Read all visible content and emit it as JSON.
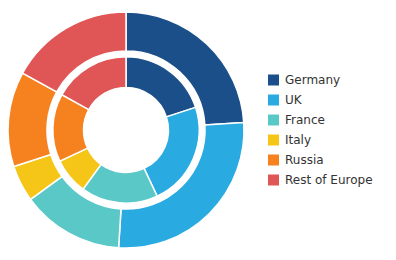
{
  "chart_data": {
    "type": "donut",
    "categories": [
      "Germany",
      "UK",
      "France",
      "Italy",
      "Russia",
      "Rest of Europe"
    ],
    "series": [
      {
        "values": [
          24,
          27,
          14,
          5,
          13,
          17
        ]
      },
      {
        "values": [
          20,
          23,
          17,
          8,
          15,
          17
        ]
      }
    ],
    "colors": [
      "#1b4f8a",
      "#29abe2",
      "#5bc8c8",
      "#f5c518",
      "#f5821f",
      "#e05555"
    ],
    "legend": "right"
  }
}
